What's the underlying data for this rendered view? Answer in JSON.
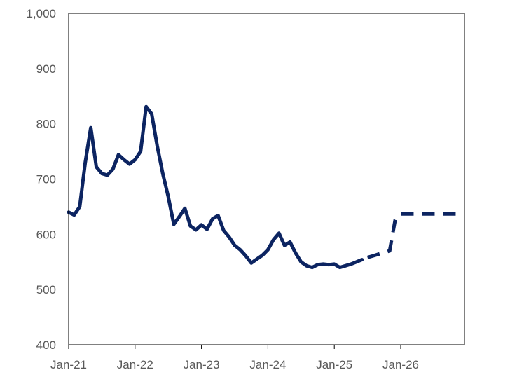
{
  "chart_data": {
    "type": "line",
    "title": "",
    "xlabel": "",
    "ylabel": "",
    "ylim": [
      400,
      1000
    ],
    "xlim": [
      "2021-01",
      "2026-12"
    ],
    "y_ticks": [
      {
        "value": 400,
        "label": "400"
      },
      {
        "value": 500,
        "label": "500"
      },
      {
        "value": 600,
        "label": "600"
      },
      {
        "value": 700,
        "label": "700"
      },
      {
        "value": 800,
        "label": "800"
      },
      {
        "value": 900,
        "label": "900"
      },
      {
        "value": 1000,
        "label": "1,000"
      }
    ],
    "x_ticks": [
      {
        "value": "2021-01",
        "label": "Jan-21"
      },
      {
        "value": "2022-01",
        "label": "Jan-22"
      },
      {
        "value": "2023-01",
        "label": "Jan-23"
      },
      {
        "value": "2024-01",
        "label": "Jan-24"
      },
      {
        "value": "2025-01",
        "label": "Jan-25"
      },
      {
        "value": "2026-01",
        "label": "Jan-26"
      }
    ],
    "grid": false,
    "legend": "none",
    "series": [
      {
        "style": "solid",
        "color": "#0c2461",
        "x": [
          "2021-01",
          "2021-02",
          "2021-03",
          "2021-04",
          "2021-05",
          "2021-06",
          "2021-07",
          "2021-08",
          "2021-09",
          "2021-10",
          "2021-11",
          "2021-12",
          "2022-01",
          "2022-02",
          "2022-03",
          "2022-04",
          "2022-05",
          "2022-06",
          "2022-07",
          "2022-08",
          "2022-09",
          "2022-10",
          "2022-11",
          "2022-12",
          "2023-01",
          "2023-02",
          "2023-03",
          "2023-04",
          "2023-05",
          "2023-06",
          "2023-07",
          "2023-08",
          "2023-09",
          "2023-10",
          "2023-11",
          "2023-12",
          "2024-01",
          "2024-02",
          "2024-03",
          "2024-04",
          "2024-05",
          "2024-06",
          "2024-07",
          "2024-08",
          "2024-09",
          "2024-10",
          "2024-11",
          "2024-12",
          "2025-01",
          "2025-02",
          "2025-03",
          "2025-04",
          "2025-05",
          "2025-06"
        ],
        "values": [
          640,
          635,
          650,
          730,
          793,
          722,
          710,
          707,
          718,
          744,
          735,
          727,
          735,
          750,
          831,
          818,
          760,
          710,
          668,
          618,
          632,
          647,
          615,
          608,
          617,
          609,
          628,
          634,
          607,
          595,
          580,
          572,
          561,
          548,
          555,
          562,
          572,
          590,
          602,
          580,
          586,
          566,
          550,
          543,
          540,
          545,
          546,
          545,
          546,
          540,
          543,
          546,
          550,
          554
        ]
      },
      {
        "style": "dashed",
        "color": "#0c2461",
        "x": [
          "2025-07",
          "2025-08",
          "2025-09",
          "2025-10",
          "2025-11",
          "2025-12",
          "2026-01",
          "2026-02",
          "2026-03",
          "2026-04",
          "2026-05",
          "2026-06",
          "2026-07",
          "2026-08",
          "2026-09",
          "2026-10",
          "2026-11"
        ],
        "values": [
          558,
          561,
          564,
          567,
          570,
          626,
          637,
          637,
          637,
          637,
          637,
          637,
          637,
          637,
          637,
          637,
          637
        ]
      }
    ]
  }
}
